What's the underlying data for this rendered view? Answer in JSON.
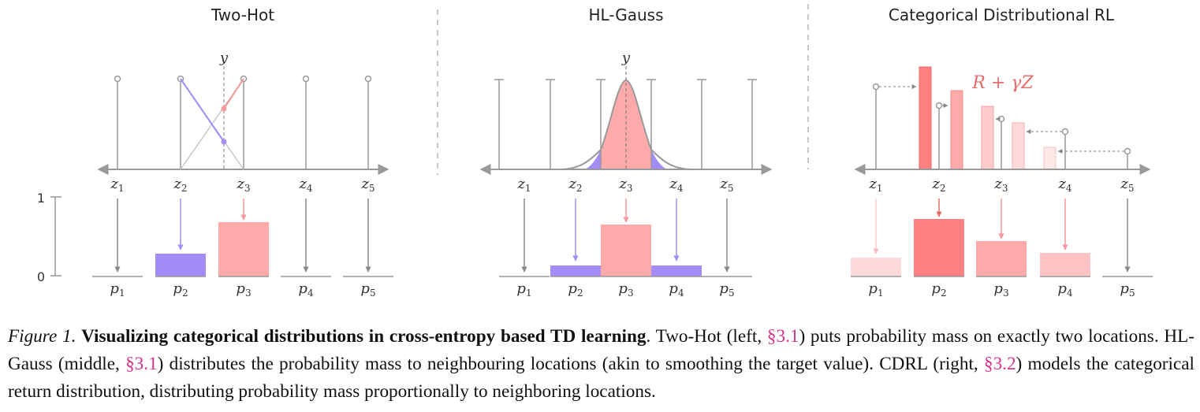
{
  "panels": [
    {
      "title": "Two-Hot",
      "target_label": "y",
      "support_labels": [
        "z1",
        "z2",
        "z3",
        "z4",
        "z5"
      ],
      "prob_labels": [
        "p1",
        "p2",
        "p3",
        "p4",
        "p5"
      ],
      "probs": [
        0.0,
        0.29,
        0.69,
        0.0,
        0.0
      ]
    },
    {
      "title": "HL-Gauss",
      "target_label": "y",
      "support_labels": [
        "z1",
        "z2",
        "z3",
        "z4",
        "z5"
      ],
      "prob_labels": [
        "p1",
        "p2",
        "p3",
        "p4",
        "p5"
      ],
      "probs": [
        0.0,
        0.14,
        0.66,
        0.14,
        0.0
      ]
    },
    {
      "title": "Categorical Distributional RL",
      "annotation": "R + γZ",
      "support_labels": [
        "z1",
        "z2",
        "z3",
        "z4",
        "z5"
      ],
      "prob_labels": [
        "p1",
        "p2",
        "p3",
        "p4",
        "p5"
      ],
      "probs": [
        0.24,
        0.73,
        0.45,
        0.3,
        0.0
      ]
    }
  ],
  "yaxis": {
    "top_label": "1",
    "bottom_label": "0"
  },
  "colors": {
    "purple": "#a48cf6",
    "salmon": "#ffaaaa",
    "deep_red": "#ff8080",
    "light_pink": "#ffdada",
    "gray": "#999999",
    "link": "#d6338a",
    "title_text": "#e05555"
  },
  "caption": {
    "label": "Figure 1.",
    "title": "Visualizing categorical distributions in cross-entropy based TD learning",
    "part1": ". Two-Hot (left, ",
    "ref1": "§3.1",
    "part2": ") puts probability mass on exactly two locations. HL-Gauss (middle, ",
    "ref2": "§3.1",
    "part3": ") distributes the probability mass to neighbouring locations (akin to smoothing the target value). CDRL (right, ",
    "ref3": "§3.2",
    "part4": ") models the categorical return distribution, distributing probability mass proportionally to neighboring locations."
  }
}
